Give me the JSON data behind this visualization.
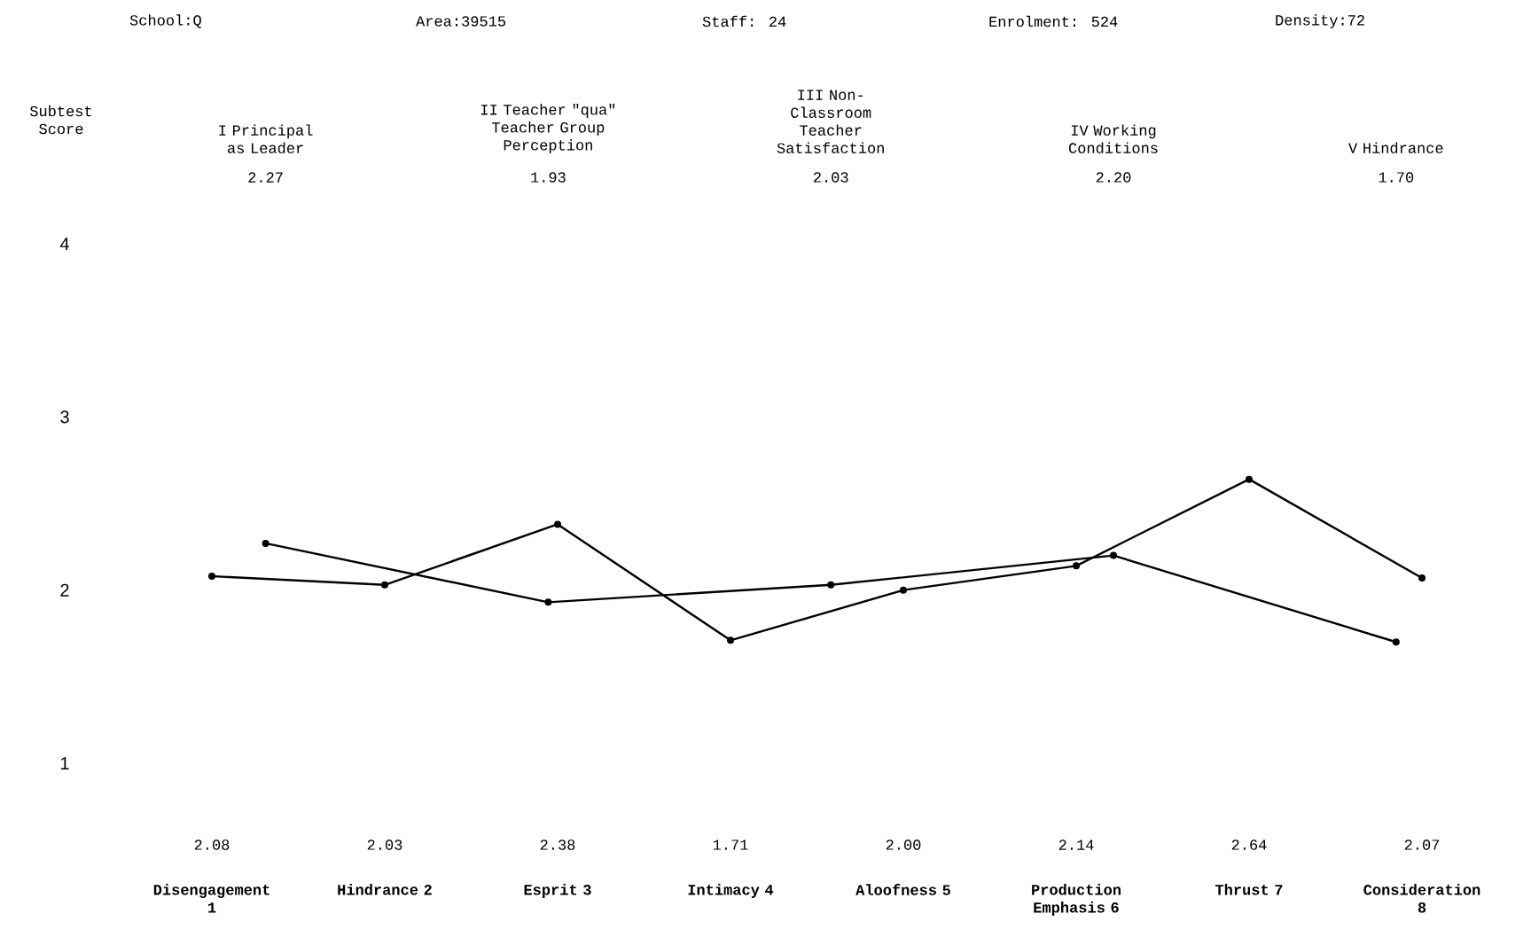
{
  "chart_data": [
    {
      "type": "line",
      "annotations": [
        "School:Q",
        "Area:39515",
        "Staff: 24",
        "Enrolment: 524",
        "Density:72"
      ],
      "categories": [
        "Disengagement 1",
        "Hindrance 2",
        "Esprit 3",
        "Intimacy 4",
        "Aloofness 5",
        "Production Emphasis 6",
        "Thrust 7",
        "Consideration 8"
      ],
      "series": [
        {
          "color": "#000000",
          "values": [
            2.08,
            2.03,
            2.38,
            1.71,
            2.0,
            2.14,
            2.64,
            2.07
          ],
          "value_labels": [
            "2.08",
            "2.03",
            "2.38",
            "1.71",
            "2.00",
            "2.14",
            "2.64",
            "2.07"
          ]
        }
      ],
      "ylim": [
        1,
        4
      ],
      "yticks": [
        1,
        2,
        3,
        4
      ],
      "marker": "circle",
      "line_style": "solid"
    },
    {
      "type": "line",
      "ylabel": "Subtest Score",
      "categories": [
        "I Principal as Leader",
        "II Teacher \"qua\" Teacher Group Perception",
        "III Non-Classroom Teacher Satisfaction",
        "IV Working Conditions",
        "V Hindrance"
      ],
      "series": [
        {
          "color": "#000000",
          "values": [
            2.27,
            1.93,
            2.03,
            2.2,
            1.7
          ],
          "value_labels": [
            "2.27",
            "1.93",
            "2.03",
            "2.20",
            "1.70"
          ]
        }
      ],
      "ylim": [
        1,
        4
      ],
      "tick_labels": "x",
      "marker": "circle",
      "line_style": "solid"
    }
  ]
}
